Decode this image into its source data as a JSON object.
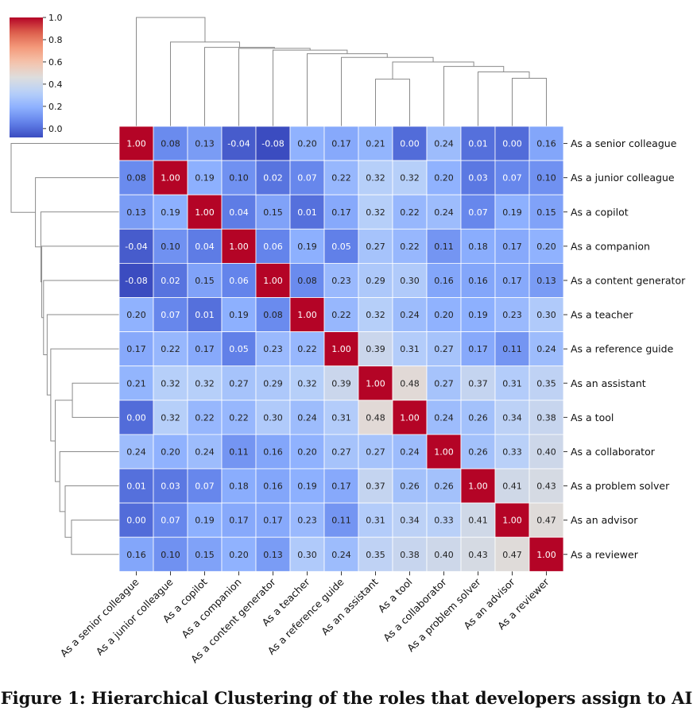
{
  "caption": "Figure 1: Hierarchical Clustering of the roles that developers assign to AI",
  "chart_data": {
    "type": "heatmap",
    "title": "",
    "labels": [
      "As a senior colleague",
      "As a junior colleague",
      "As a copilot",
      "As a companion",
      "As a content generator",
      "As a teacher",
      "As a reference guide",
      "As an assistant",
      "As a tool",
      "As a collaborator",
      "As a problem solver",
      "As an advisor",
      "As a reviewer"
    ],
    "matrix": [
      [
        1.0,
        0.08,
        0.13,
        -0.04,
        -0.08,
        0.2,
        0.17,
        0.21,
        0.0,
        0.24,
        0.01,
        0.0,
        0.16
      ],
      [
        0.08,
        1.0,
        0.19,
        0.1,
        0.02,
        0.07,
        0.22,
        0.32,
        0.32,
        0.2,
        0.03,
        0.07,
        0.1
      ],
      [
        0.13,
        0.19,
        1.0,
        0.04,
        0.15,
        0.01,
        0.17,
        0.32,
        0.22,
        0.24,
        0.07,
        0.19,
        0.15
      ],
      [
        -0.04,
        0.1,
        0.04,
        1.0,
        0.06,
        0.19,
        0.05,
        0.27,
        0.22,
        0.11,
        0.18,
        0.17,
        0.2
      ],
      [
        -0.08,
        0.02,
        0.15,
        0.06,
        1.0,
        0.08,
        0.23,
        0.29,
        0.3,
        0.16,
        0.16,
        0.17,
        0.13
      ],
      [
        0.2,
        0.07,
        0.01,
        0.19,
        0.08,
        1.0,
        0.22,
        0.32,
        0.24,
        0.2,
        0.19,
        0.23,
        0.3
      ],
      [
        0.17,
        0.22,
        0.17,
        0.05,
        0.23,
        0.22,
        1.0,
        0.39,
        0.31,
        0.27,
        0.17,
        0.11,
        0.24
      ],
      [
        0.21,
        0.32,
        0.32,
        0.27,
        0.29,
        0.32,
        0.39,
        1.0,
        0.48,
        0.27,
        0.37,
        0.31,
        0.35
      ],
      [
        0.0,
        0.32,
        0.22,
        0.22,
        0.3,
        0.24,
        0.31,
        0.48,
        1.0,
        0.24,
        0.26,
        0.34,
        0.38
      ],
      [
        0.24,
        0.2,
        0.24,
        0.11,
        0.16,
        0.2,
        0.27,
        0.27,
        0.24,
        1.0,
        0.26,
        0.33,
        0.4
      ],
      [
        0.01,
        0.03,
        0.07,
        0.18,
        0.16,
        0.19,
        0.17,
        0.37,
        0.26,
        0.26,
        1.0,
        0.41,
        0.43
      ],
      [
        0.0,
        0.07,
        0.19,
        0.17,
        0.17,
        0.23,
        0.11,
        0.31,
        0.34,
        0.33,
        0.41,
        1.0,
        0.47
      ],
      [
        0.16,
        0.1,
        0.15,
        0.2,
        0.13,
        0.3,
        0.24,
        0.35,
        0.38,
        0.4,
        0.43,
        0.47,
        1.0
      ]
    ],
    "value_format": "2 decimals",
    "colormap": "coolwarm",
    "colorbar": {
      "min": -0.08,
      "max": 1.0,
      "ticks": [
        "0.0",
        "0.2",
        "0.4",
        "0.6",
        "0.8",
        "1.0"
      ],
      "placement": "top-left"
    },
    "dendrogram": {
      "linkage": [
        {
          "a": 7,
          "b": 8,
          "height": 0.52
        },
        {
          "a": 11,
          "b": 12,
          "height": 0.53
        },
        {
          "a": 10,
          "b": "m1",
          "height": 0.6
        },
        {
          "a": 9,
          "b": "m2",
          "height": 0.66
        },
        {
          "a": "m0",
          "b": "m3",
          "height": 0.71
        },
        {
          "a": 6,
          "b": "m4",
          "height": 0.76
        },
        {
          "a": 5,
          "b": "m5",
          "height": 0.8
        },
        {
          "a": 4,
          "b": "m6",
          "height": 0.84
        },
        {
          "a": 3,
          "b": "m7",
          "height": 0.86
        },
        {
          "a": 2,
          "b": "m8",
          "height": 0.87
        },
        {
          "a": 1,
          "b": "m9",
          "height": 0.93
        },
        {
          "a": 0,
          "b": "m10",
          "height": 1.2
        }
      ],
      "placement": [
        "top",
        "left"
      ]
    }
  }
}
